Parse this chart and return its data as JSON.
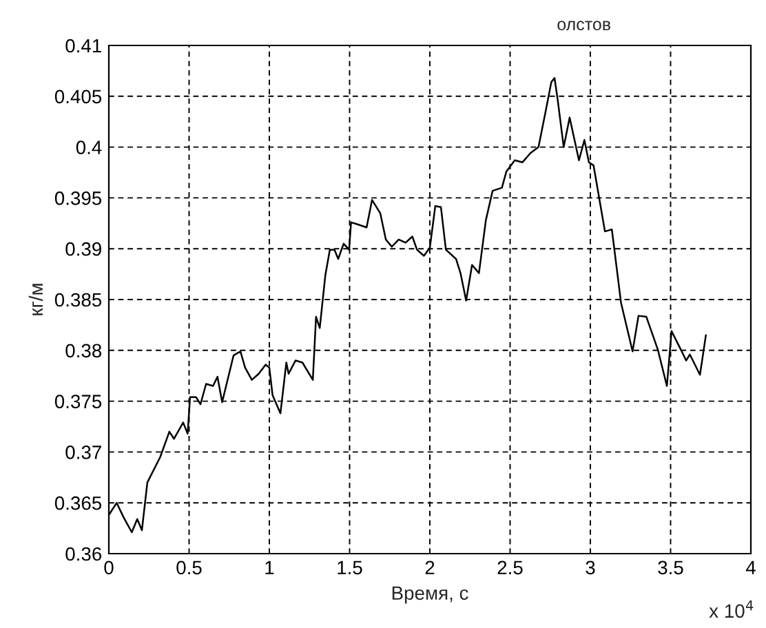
{
  "chart_data": {
    "type": "line",
    "title": "олстов",
    "xlabel": "Время, с",
    "ylabel": "кг/м",
    "annotations": [
      "x 10$^{4}$"
    ],
    "series": [
      {
        "color": "#000000",
        "x": [
          0,
          0.049,
          0.091,
          0.143,
          0.177,
          0.206,
          0.24,
          0.32,
          0.377,
          0.406,
          0.463,
          0.491,
          0.506,
          0.543,
          0.571,
          0.606,
          0.649,
          0.677,
          0.706,
          0.777,
          0.82,
          0.849,
          0.891,
          0.934,
          0.977,
          1.0,
          1.02,
          1.069,
          1.106,
          1.12,
          1.163,
          1.206,
          1.271,
          1.291,
          1.314,
          1.349,
          1.377,
          1.406,
          1.429,
          1.463,
          1.497,
          1.509,
          1.549,
          1.606,
          1.64,
          1.691,
          1.726,
          1.763,
          1.806,
          1.849,
          1.891,
          1.92,
          1.963,
          2.0,
          2.034,
          2.069,
          2.1,
          2.163,
          2.191,
          2.226,
          2.263,
          2.306,
          2.349,
          2.391,
          2.449,
          2.477,
          2.529,
          2.577,
          2.626,
          2.677,
          2.72,
          2.757,
          2.777,
          2.797,
          2.834,
          2.871,
          2.929,
          2.963,
          2.991,
          3.02,
          3.091,
          3.134,
          3.191,
          3.263,
          3.3,
          3.349,
          3.42,
          3.477,
          3.506,
          3.563,
          3.597,
          3.62,
          3.683,
          3.72
        ],
        "values": [
          0.3638,
          0.365,
          0.3636,
          0.3621,
          0.3634,
          0.3623,
          0.367,
          0.3695,
          0.372,
          0.3713,
          0.3729,
          0.3718,
          0.3754,
          0.3754,
          0.3747,
          0.3767,
          0.3765,
          0.3774,
          0.3749,
          0.3795,
          0.3799,
          0.3783,
          0.3771,
          0.3777,
          0.3786,
          0.3783,
          0.3756,
          0.3738,
          0.3788,
          0.3777,
          0.379,
          0.3788,
          0.3771,
          0.3833,
          0.3822,
          0.3874,
          0.3899,
          0.3899,
          0.389,
          0.3905,
          0.3899,
          0.3926,
          0.3924,
          0.3921,
          0.3948,
          0.3935,
          0.3909,
          0.3902,
          0.3909,
          0.3906,
          0.3912,
          0.3899,
          0.3893,
          0.3901,
          0.3942,
          0.3941,
          0.3899,
          0.389,
          0.3876,
          0.3849,
          0.3884,
          0.3876,
          0.3928,
          0.3957,
          0.396,
          0.3976,
          0.3987,
          0.3985,
          0.3994,
          0.4,
          0.4034,
          0.4064,
          0.4068,
          0.4046,
          0.4,
          0.4029,
          0.3987,
          0.4007,
          0.3985,
          0.3982,
          0.3917,
          0.3919,
          0.3847,
          0.3799,
          0.3834,
          0.3833,
          0.3801,
          0.3765,
          0.3819,
          0.3801,
          0.379,
          0.3796,
          0.3776,
          0.3815
        ]
      }
    ],
    "xlim": [
      0,
      4
    ],
    "xticks": [
      0,
      0.5,
      1,
      1.5,
      2,
      2.5,
      3,
      3.5,
      4
    ],
    "ylim": [
      0.36,
      0.41
    ],
    "yticks": [
      0.36,
      0.365,
      0.37,
      0.375,
      0.38,
      0.385,
      0.39,
      0.395,
      0.4,
      0.405,
      0.41
    ],
    "grid": true,
    "line_style": "solid",
    "marker": "none"
  }
}
